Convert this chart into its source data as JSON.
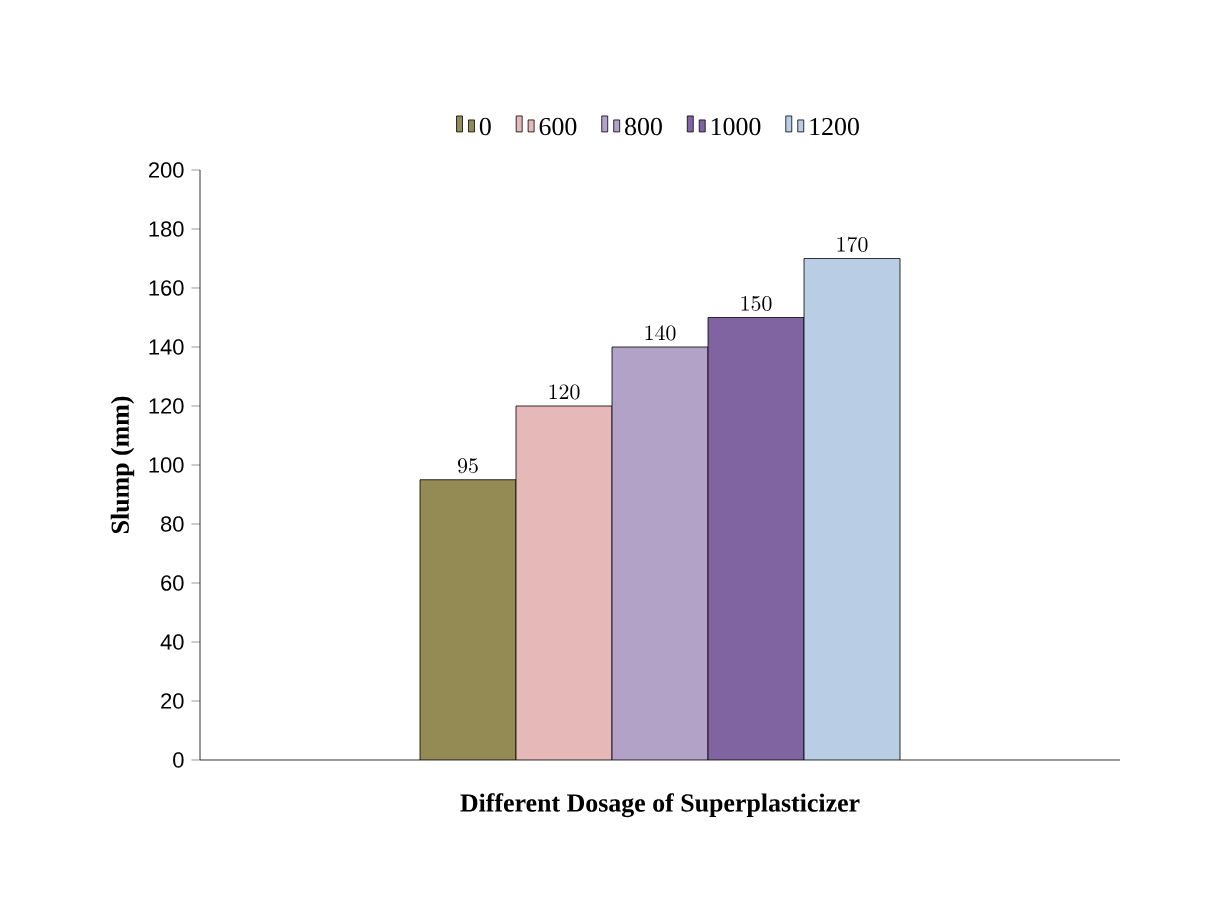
{
  "chart_data": {
    "type": "bar",
    "xlabel": "Different Dosage of Superplasticizer",
    "ylabel": "Slump  (mm)",
    "categories": [
      null
    ],
    "series": [
      {
        "name": "0",
        "color": "#948a54",
        "values": [
          95
        ]
      },
      {
        "name": "600",
        "color": "#e6b9b8",
        "values": [
          120
        ]
      },
      {
        "name": "800",
        "color": "#b3a2c7",
        "values": [
          140
        ]
      },
      {
        "name": "1000",
        "color": "#8064a2",
        "values": [
          150
        ]
      },
      {
        "name": "1200",
        "color": "#b9cde5",
        "values": [
          170
        ]
      }
    ],
    "ylim": [
      0,
      200
    ],
    "yticks": [
      0,
      20,
      40,
      60,
      80,
      100,
      120,
      140,
      160,
      180,
      200
    ],
    "data_labels": true,
    "legend": "top",
    "grid": false
  }
}
